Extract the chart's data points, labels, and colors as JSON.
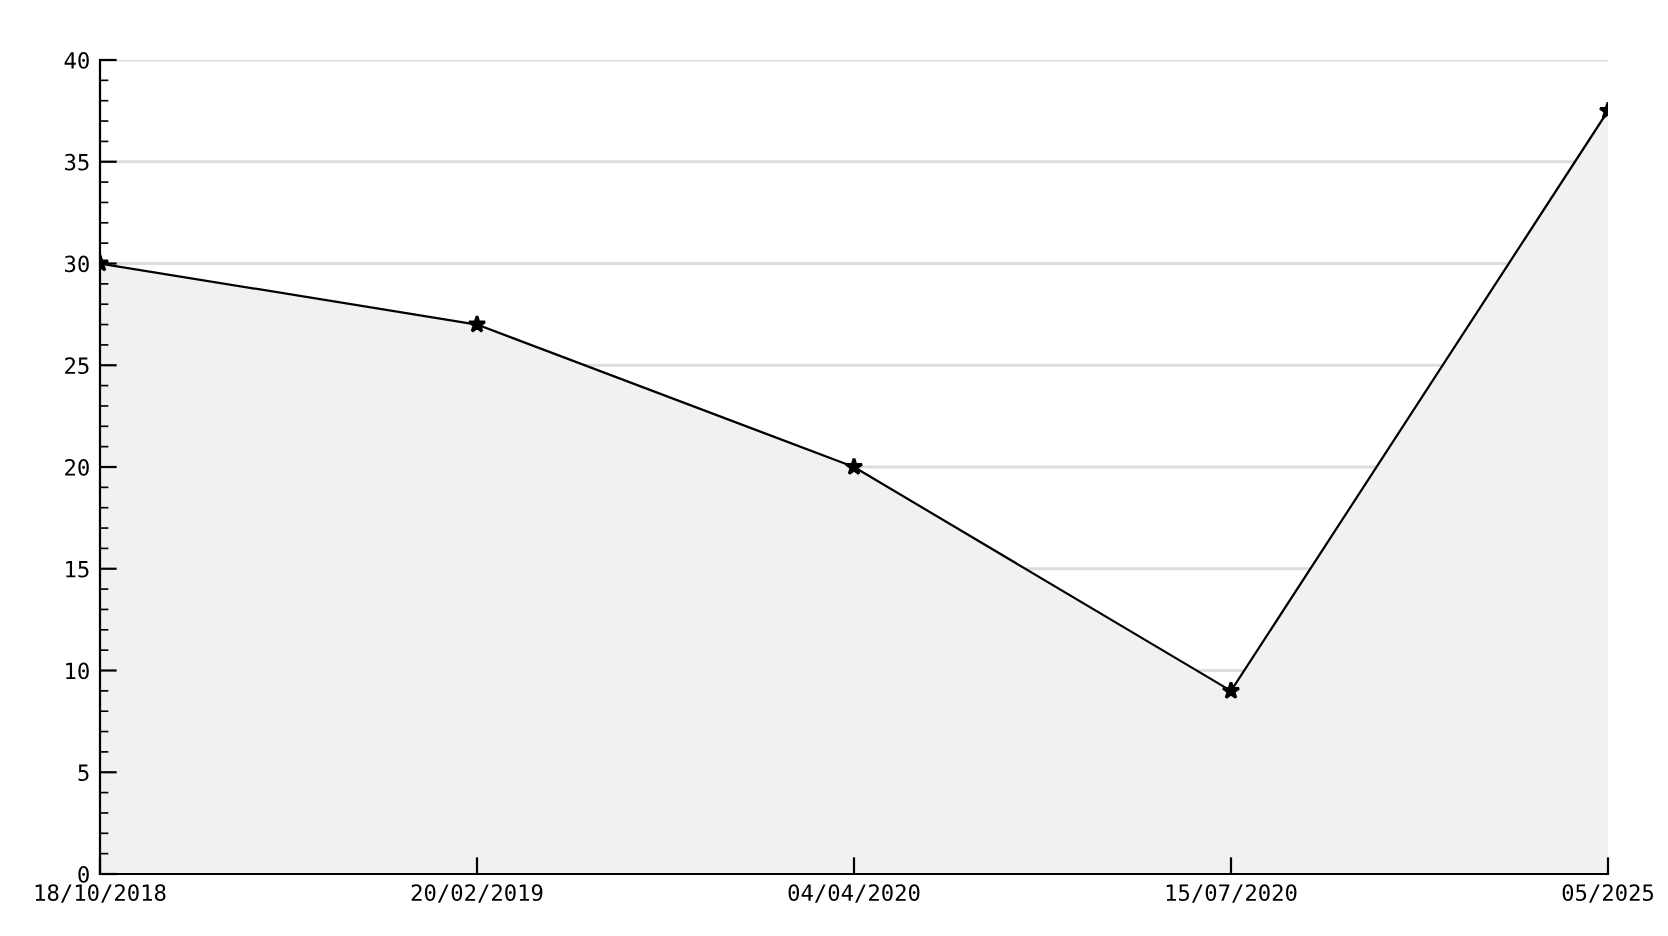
{
  "chart_data": {
    "type": "area",
    "categories": [
      "18/10/2018",
      "20/02/2019",
      "04/04/2020",
      "15/07/2020",
      "05/2025"
    ],
    "series": [
      {
        "color": "#f1f1f1",
        "values": [
          30,
          27,
          20,
          9,
          37.5
        ]
      }
    ],
    "ylim": [
      0,
      40
    ],
    "yticks": [
      0,
      5,
      10,
      15,
      20,
      25,
      30,
      35,
      40
    ],
    "grid": "y",
    "marker": "star",
    "line_style": "solid",
    "legend": false
  }
}
